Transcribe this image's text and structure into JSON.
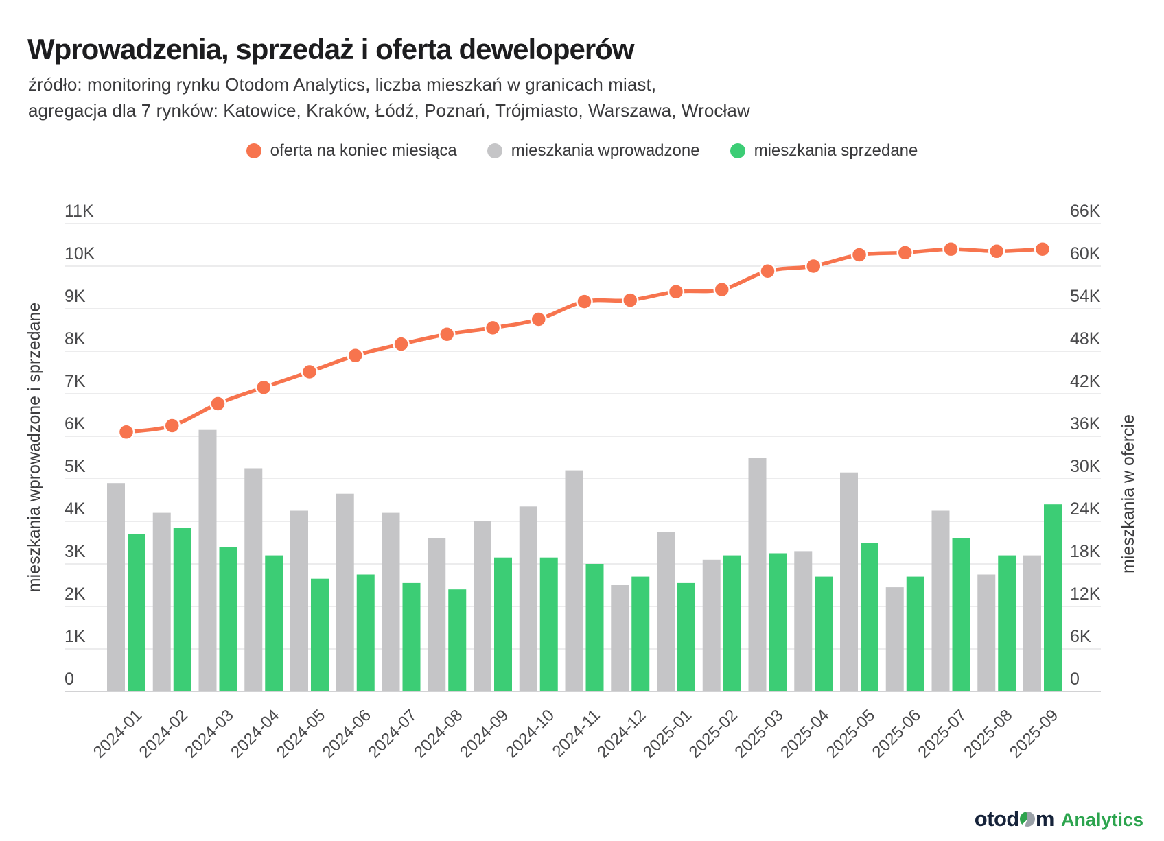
{
  "header": {
    "title": "Wprowadzenia, sprzedaż i oferta deweloperów",
    "subtitle_line1": "źródło: monitoring rynku Otodom Analytics, liczba mieszkań w granicach miast,",
    "subtitle_line2": "agregacja dla 7 rynków: Katowice, Kraków, Łódź, Poznań, Trójmiasto, Warszawa, Wrocław"
  },
  "legend": [
    {
      "label": "oferta na koniec miesiąca",
      "color": "#f7744e"
    },
    {
      "label": "mieszkania wprowadzone",
      "color": "#c5c5c7"
    },
    {
      "label": "mieszkania sprzedane",
      "color": "#3ccd75"
    }
  ],
  "footer": {
    "brand_left": "otod",
    "brand_right": "m",
    "suffix": "Analytics"
  },
  "chart_data": {
    "type": "combo",
    "title": "Wprowadzenia, sprzedaż i oferta deweloperów",
    "grid": true,
    "legend_position": "top",
    "categories": [
      "2024-01",
      "2024-02",
      "2024-03",
      "2024-04",
      "2024-05",
      "2024-06",
      "2024-07",
      "2024-08",
      "2024-09",
      "2024-10",
      "2024-11",
      "2024-12",
      "2025-01",
      "2025-02",
      "2025-03",
      "2025-04",
      "2025-05",
      "2025-06",
      "2025-07",
      "2025-08",
      "2025-09"
    ],
    "series": [
      {
        "name": "mieszkania wprowadzone",
        "type": "bar",
        "axis": "left",
        "color": "#c5c5c7",
        "values": [
          4900,
          4200,
          6150,
          5250,
          4250,
          4650,
          4200,
          3600,
          4000,
          4350,
          5200,
          2500,
          3750,
          3100,
          5500,
          3300,
          5150,
          2450,
          4250,
          2750,
          3200
        ]
      },
      {
        "name": "mieszkania sprzedane",
        "type": "bar",
        "axis": "left",
        "color": "#3ccd75",
        "values": [
          3700,
          3850,
          3400,
          3200,
          2650,
          2750,
          2550,
          2400,
          3150,
          3150,
          3000,
          2700,
          2550,
          3200,
          3250,
          2700,
          3500,
          2700,
          3600,
          3200,
          4400
        ]
      },
      {
        "name": "oferta na koniec miesiąca",
        "type": "line",
        "axis": "right",
        "color": "#f7744e",
        "values": [
          36600,
          37500,
          40600,
          42900,
          45100,
          47400,
          49000,
          50400,
          51300,
          52500,
          55000,
          55200,
          56400,
          56700,
          59300,
          60000,
          61600,
          61900,
          62400,
          62100,
          62400
        ]
      }
    ],
    "axis_left": {
      "title": "mieszkania wprowadzone i sprzedane",
      "min": 0,
      "max": 11000,
      "tick_step": 1000,
      "tick_labels": [
        "0",
        "1K",
        "2K",
        "3K",
        "4K",
        "5K",
        "6K",
        "7K",
        "8K",
        "9K",
        "10K",
        "11K"
      ]
    },
    "axis_right": {
      "title": "mieszkania w ofercie",
      "min": 0,
      "max": 66000,
      "tick_step": 6000,
      "tick_labels": [
        "0",
        "6K",
        "12K",
        "18K",
        "24K",
        "30K",
        "36K",
        "42K",
        "48K",
        "54K",
        "60K",
        "66K"
      ]
    },
    "style": {
      "grid_color": "#e5e5e7",
      "baseline_color": "#d2d2d4",
      "tick_label_color": "#4a4a4c",
      "axis_title_color": "#3d3d3f"
    }
  }
}
